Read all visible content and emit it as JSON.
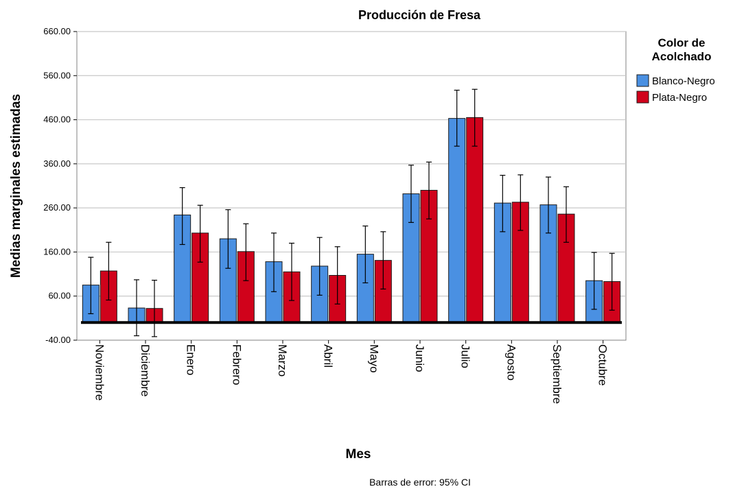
{
  "chart_data": {
    "type": "bar",
    "title": "Producción de Fresa",
    "xlabel": "Mes",
    "ylabel": "Medias marginales estimadas",
    "ylim": [
      -40,
      660
    ],
    "yticks": [
      "-40.00",
      "60.00",
      "160.00",
      "260.00",
      "360.00",
      "460.00",
      "560.00",
      "660.00"
    ],
    "grid": true,
    "legend_title_lines": [
      "Color de",
      "Acolchado"
    ],
    "legend_position": "right",
    "footnote": "Barras de error: 95% CI",
    "categories": [
      "Noviembre",
      "Diciembre",
      "Enero",
      "Febrero",
      "Marzo",
      "Abril",
      "Mayo",
      "Junio",
      "Julio",
      "Agosto",
      "Septiembre",
      "Octubre"
    ],
    "series": [
      {
        "name": "Blanco-Negro",
        "color": "#4a90e2",
        "values": [
          85,
          33,
          244,
          190,
          138,
          128,
          155,
          292,
          463,
          271,
          267,
          95
        ],
        "ci_low": [
          20,
          -30,
          177,
          123,
          70,
          62,
          90,
          227,
          400,
          206,
          203,
          30
        ],
        "ci_high": [
          148,
          97,
          306,
          256,
          203,
          193,
          219,
          357,
          527,
          334,
          330,
          159
        ]
      },
      {
        "name": "Plata-Negro",
        "color": "#d0021b",
        "values": [
          117,
          32,
          203,
          161,
          115,
          107,
          141,
          300,
          465,
          273,
          246,
          93
        ],
        "ci_low": [
          51,
          -32,
          137,
          95,
          50,
          42,
          76,
          235,
          400,
          209,
          182,
          28
        ],
        "ci_high": [
          182,
          96,
          266,
          224,
          180,
          172,
          206,
          364,
          529,
          335,
          308,
          157
        ]
      }
    ]
  }
}
